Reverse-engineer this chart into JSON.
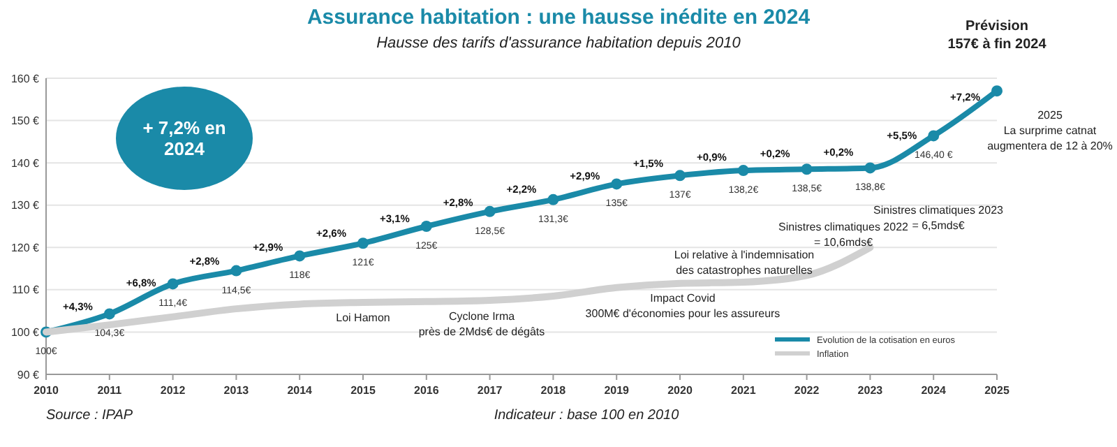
{
  "chart_data": {
    "type": "line",
    "title": "Assurance habitation : une hausse inédite en 2024",
    "subtitle": "Hausse des tarifs d'assurance habitation depuis 2010",
    "x": [
      2010,
      2011,
      2012,
      2013,
      2014,
      2015,
      2016,
      2017,
      2018,
      2019,
      2020,
      2021,
      2022,
      2023,
      2024,
      2025
    ],
    "series": [
      {
        "name": "Evolution de la cotisation en euros",
        "color": "#1a8aa8",
        "marker": "circle",
        "values": [
          100,
          104.3,
          111.4,
          114.5,
          118,
          121,
          125,
          128.5,
          131.3,
          135,
          137,
          138.2,
          138.5,
          138.8,
          146.4,
          157
        ],
        "value_labels": [
          "100€",
          "104,3€",
          "111,4€",
          "114,5€",
          "118€",
          "121€",
          "125€",
          "128,5€",
          "131,3€",
          "135€",
          "137€",
          "138,2€",
          "138,5€",
          "138,8€",
          "146,40 €",
          null
        ]
      },
      {
        "name": "Inflation",
        "color": "#d0d0d0",
        "marker": "none",
        "values": [
          100,
          101.7,
          103.6,
          105.5,
          106.6,
          107,
          107.2,
          107.5,
          108.5,
          110.5,
          111.5,
          111.8,
          113.4,
          120,
          null,
          null
        ]
      }
    ],
    "xlim": [
      2010,
      2025
    ],
    "xticks": [
      2010,
      2011,
      2012,
      2013,
      2014,
      2015,
      2016,
      2017,
      2018,
      2019,
      2020,
      2021,
      2022,
      2023,
      2024,
      2025
    ],
    "ylim": [
      90,
      160
    ],
    "yticks": [
      {
        "value": 90,
        "label": "90 €"
      },
      {
        "value": 100,
        "label": "100 €"
      },
      {
        "value": 110,
        "label": "110 €"
      },
      {
        "value": 120,
        "label": "120 €"
      },
      {
        "value": 130,
        "label": "130 €"
      },
      {
        "value": 140,
        "label": "140 €"
      },
      {
        "value": 150,
        "label": "150 €"
      },
      {
        "value": 160,
        "label": "160 €"
      }
    ],
    "grid": "y",
    "legend": "bottom right",
    "annotations": [
      "+ 7,2% en 2024",
      "Source : IPAP",
      "Indicateur : base 100 en 2010",
      {
        "text": "+4,3%",
        "x": 2010.5,
        "y": 102.15
      },
      {
        "text": "+6,8%",
        "x": 2011.5,
        "y": 107.85
      },
      {
        "text": "+2,8%",
        "x": 2012.5,
        "y": 112.95
      },
      {
        "text": "+2,9%",
        "x": 2013.5,
        "y": 116.25
      },
      {
        "text": "+2,6%",
        "x": 2014.5,
        "y": 119.5
      },
      {
        "text": "+3,1%",
        "x": 2015.5,
        "y": 123
      },
      {
        "text": "+2,8%",
        "x": 2016.5,
        "y": 126.75
      },
      {
        "text": "+2,2%",
        "x": 2017.5,
        "y": 129.9
      },
      {
        "text": "+2,9%",
        "x": 2018.5,
        "y": 133.15
      },
      {
        "text": "+1,5%",
        "x": 2019.5,
        "y": 136
      },
      {
        "text": "+0,9%",
        "x": 2020.5,
        "y": 137.6
      },
      {
        "text": "+0,2%",
        "x": 2021.5,
        "y": 138.35
      },
      {
        "text": "+0,2%",
        "x": 2022.5,
        "y": 138.65
      },
      {
        "text": "+5,5%",
        "x": 2023.5,
        "y": 142.6
      },
      {
        "text": "+7,2%",
        "x": 2024.5,
        "y": 151.7
      },
      "Prévision\n157€ à fin 2024",
      "Loi Hamon",
      "Cyclone Irma\nprès de 2Mds€ de dégâts",
      "Impact Covid\n300M€ d'économies pour les assureurs",
      "Loi relative à l'indemnisation\ndes catastrophes naturelles",
      "Sinistres climatiques 2022\n= 10,6mds€",
      "Sinistres climatiques 2023\n= 6,5mds€",
      "2025\nLa surprime catnat\naugmentera de 12 à 20%"
    ]
  }
}
